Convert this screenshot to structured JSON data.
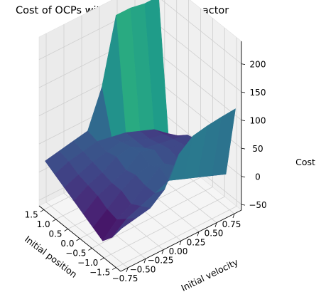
{
  "chart_data": {
    "type": "surface",
    "title": "Cost of OCPs with initial guess from actor",
    "xlabel": "Initial position",
    "ylabel": "Initial velocity",
    "zlabel": "Cost",
    "x_ticks": [
      "−1.5",
      "−1.0",
      "−0.5",
      "0.0",
      "0.5",
      "1.0",
      "1.5"
    ],
    "y_ticks": [
      "−0.75",
      "−0.50",
      "−0.25",
      "0.00",
      "0.25",
      "0.50",
      "0.75"
    ],
    "z_ticks": [
      "−50",
      "0",
      "50",
      "100",
      "150",
      "200"
    ],
    "xlim": [
      -1.7,
      1.7
    ],
    "ylim": [
      -0.85,
      0.85
    ],
    "zlim": [
      -60,
      240
    ],
    "colormap": "viridis",
    "grid": true,
    "x": [
      -1.6,
      -1.2,
      -0.8,
      -0.4,
      0.0,
      0.4,
      0.8,
      1.2,
      1.6
    ],
    "y": [
      -0.8,
      -0.6,
      -0.4,
      -0.2,
      0.0,
      0.2,
      0.4,
      0.6,
      0.8
    ],
    "z": [
      [
        10,
        15,
        20,
        40,
        90,
        110,
        115,
        118,
        120
      ],
      [
        -20,
        0,
        10,
        20,
        30,
        20,
        10,
        0,
        -10
      ],
      [
        -40,
        -15,
        0,
        20,
        40,
        30,
        25,
        10,
        0
      ],
      [
        -30,
        -10,
        10,
        25,
        30,
        20,
        15,
        10,
        5
      ],
      [
        -20,
        0,
        10,
        20,
        40,
        30,
        20,
        15,
        10
      ],
      [
        -10,
        5,
        15,
        30,
        35,
        20,
        15,
        10,
        5
      ],
      [
        0,
        10,
        20,
        25,
        30,
        20,
        10,
        5,
        -10
      ],
      [
        10,
        20,
        25,
        30,
        25,
        20,
        10,
        0,
        -20
      ],
      [
        20,
        25,
        30,
        35,
        100,
        215,
        215,
        210,
        210
      ]
    ]
  }
}
